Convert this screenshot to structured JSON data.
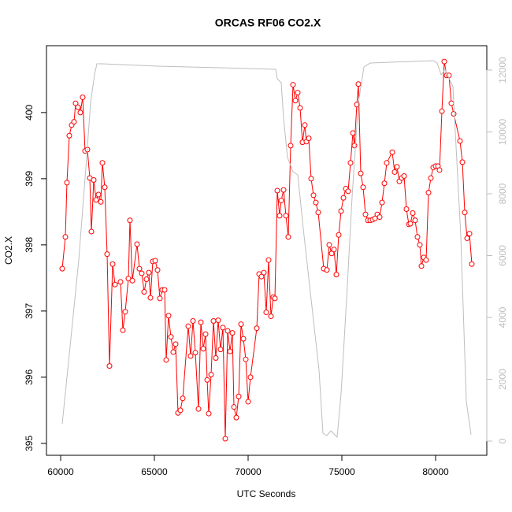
{
  "chart_data": {
    "type": "line",
    "title": "ORCAS RF06 CO2.X",
    "xlabel": "UTC Seconds",
    "ylabel": "CO2.X",
    "xlim": [
      59244,
      82731
    ],
    "xticks": [
      60000,
      65000,
      70000,
      75000,
      80000
    ],
    "ylim": [
      394.82,
      401.01
    ],
    "yticks": [
      395,
      396,
      397,
      398,
      399,
      400
    ],
    "y2lim": [
      -459,
      12790
    ],
    "y2ticks": [
      0,
      2000,
      4000,
      6000,
      8000,
      10000,
      12000
    ],
    "y2color": "#bebebe",
    "series": [
      {
        "color": "#ff0000",
        "axis": "y",
        "markers": true,
        "x": [
          60084,
          60252,
          60336,
          60462,
          60588,
          60714,
          60798,
          60924,
          61050,
          61176,
          61302,
          61428,
          61555,
          61639,
          61765,
          61891,
          62017,
          62143,
          62227,
          62353,
          62479,
          62605,
          62773,
          62899,
          63193,
          63319,
          63445,
          63613,
          63697,
          63824,
          64076,
          64202,
          64328,
          64454,
          64580,
          64706,
          64790,
          64916,
          65042,
          65168,
          65294,
          65420,
          65546,
          65630,
          65756,
          65882,
          66008,
          66134,
          66260,
          66386,
          66512,
          66807,
          66933,
          67059,
          67185,
          67353,
          67479,
          67605,
          67731,
          67815,
          67899,
          68025,
          68151,
          68277,
          68403,
          68529,
          68655,
          68782,
          68908,
          69034,
          69160,
          69244,
          69370,
          69496,
          69622,
          69748,
          69874,
          70000,
          70126,
          70462,
          70588,
          70714,
          70840,
          70966,
          71092,
          71218,
          71345,
          71429,
          71555,
          71681,
          71765,
          71891,
          72017,
          72143,
          72269,
          72395,
          72521,
          72647,
          72773,
          72899,
          73025,
          73109,
          73235,
          73361,
          73487,
          73613,
          73739,
          74034,
          74202,
          74328,
          74454,
          74580,
          74706,
          74832,
          74958,
          75084,
          75210,
          75336,
          75462,
          75588,
          75672,
          75798,
          75882,
          76008,
          76134,
          76261,
          76387,
          76513,
          76639,
          76765,
          76891,
          77017,
          77143,
          77269,
          77395,
          77689,
          77815,
          77941,
          78067,
          78193,
          78319,
          78445,
          78571,
          78655,
          78782,
          78908,
          79034,
          79160,
          79244,
          79370,
          79496,
          79622,
          79748,
          79874,
          80000,
          80126,
          80210,
          80336,
          80462,
          80588,
          80714,
          80840,
          80966,
          81303,
          81429,
          81555,
          81681,
          81807,
          81933
        ],
        "values": [
          397.64,
          398.12,
          398.94,
          399.65,
          399.81,
          399.86,
          400.14,
          400.08,
          400.0,
          400.23,
          399.42,
          399.44,
          399.01,
          398.2,
          398.98,
          398.68,
          398.76,
          398.65,
          399.24,
          398.87,
          397.86,
          396.17,
          397.71,
          397.4,
          397.44,
          396.71,
          396.99,
          397.49,
          398.37,
          397.46,
          398.01,
          397.64,
          397.57,
          397.29,
          397.48,
          397.58,
          397.2,
          397.75,
          397.76,
          397.62,
          397.19,
          397.32,
          397.32,
          396.26,
          396.93,
          396.61,
          396.38,
          396.5,
          395.46,
          395.5,
          395.68,
          396.77,
          396.32,
          396.85,
          396.37,
          395.52,
          396.83,
          396.43,
          396.65,
          395.96,
          395.45,
          396.04,
          396.85,
          396.29,
          396.86,
          396.42,
          396.75,
          395.07,
          396.7,
          396.39,
          396.67,
          395.55,
          395.39,
          395.71,
          396.8,
          396.58,
          396.27,
          395.63,
          396.0,
          396.74,
          397.56,
          397.52,
          397.58,
          396.98,
          397.77,
          396.92,
          397.21,
          397.19,
          398.82,
          398.44,
          398.67,
          398.83,
          398.44,
          398.12,
          399.5,
          400.42,
          400.18,
          400.3,
          400.07,
          399.55,
          399.81,
          399.56,
          399.61,
          399.0,
          398.75,
          398.64,
          398.49,
          397.64,
          397.62,
          398.0,
          397.87,
          397.93,
          397.55,
          398.15,
          398.51,
          398.71,
          398.85,
          398.81,
          399.24,
          399.69,
          399.5,
          400.12,
          400.43,
          399.08,
          398.87,
          398.46,
          398.37,
          398.37,
          398.38,
          398.4,
          398.46,
          398.42,
          398.64,
          398.93,
          399.24,
          399.4,
          399.1,
          399.18,
          398.96,
          399.01,
          399.04,
          398.54,
          398.31,
          398.32,
          398.48,
          398.37,
          398.12,
          398.0,
          397.68,
          397.81,
          397.77,
          398.79,
          399.01,
          399.17,
          399.19,
          399.19,
          399.13,
          400.02,
          400.77,
          400.56,
          400.56,
          400.14,
          399.98,
          399.57,
          399.25,
          398.49,
          398.1,
          398.17,
          397.71
        ]
      },
      {
        "color": "#bebebe",
        "axis": "y2",
        "markers": false,
        "x": [
          60084,
          60546,
          60966,
          61387,
          61597,
          61807,
          61933,
          62227,
          65168,
          68529,
          71471,
          71555,
          71765,
          71891,
          72101,
          72395,
          72647,
          72941,
          73361,
          73782,
          73992,
          74202,
          74412,
          74622,
          74748,
          74958,
          75252,
          75546,
          75882,
          76177,
          76513,
          79874,
          80084,
          80294,
          80504,
          80924,
          81345,
          81639,
          81891
        ],
        "values": [
          560,
          3312,
          5860,
          9172,
          10955,
          11847,
          12204,
          12204,
          12127,
          12076,
          12025,
          11720,
          11592,
          10446,
          9172,
          8713,
          8611,
          6879,
          4586,
          2293,
          255,
          178,
          331,
          204,
          127,
          1529,
          4586,
          7898,
          10955,
          12102,
          12229,
          12306,
          12229,
          11847,
          12025,
          11465,
          6624,
          1274,
          204
        ]
      }
    ]
  }
}
